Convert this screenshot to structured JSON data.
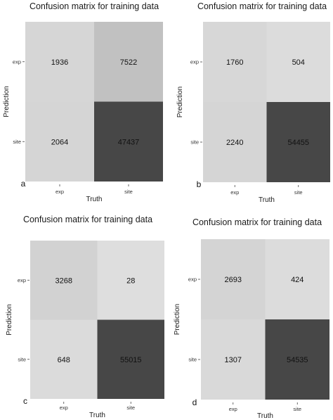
{
  "shade": {
    "low": "#dedede",
    "high": "#474747"
  },
  "chart_data": [
    {
      "type": "heatmap",
      "panel": "a",
      "title": "Confusion matrix for training data",
      "xlabel": "Truth",
      "ylabel": "Prediction",
      "x_categories": [
        "exp",
        "site"
      ],
      "y_categories": [
        "exp",
        "site"
      ],
      "cells": [
        {
          "truth": "exp",
          "prediction": "exp",
          "value": 1936
        },
        {
          "truth": "site",
          "prediction": "exp",
          "value": 7522
        },
        {
          "truth": "exp",
          "prediction": "site",
          "value": 2064
        },
        {
          "truth": "site",
          "prediction": "site",
          "value": 47437
        }
      ]
    },
    {
      "type": "heatmap",
      "panel": "b",
      "title": "Confusion matrix for training data",
      "xlabel": "Truth",
      "ylabel": "Prediction",
      "x_categories": [
        "exp",
        "site"
      ],
      "y_categories": [
        "exp",
        "site"
      ],
      "cells": [
        {
          "truth": "exp",
          "prediction": "exp",
          "value": 1760
        },
        {
          "truth": "site",
          "prediction": "exp",
          "value": 504
        },
        {
          "truth": "exp",
          "prediction": "site",
          "value": 2240
        },
        {
          "truth": "site",
          "prediction": "site",
          "value": 54455
        }
      ]
    },
    {
      "type": "heatmap",
      "panel": "c",
      "title": "Confusion matrix for training data",
      "xlabel": "Truth",
      "ylabel": "Prediction",
      "x_categories": [
        "exp",
        "site"
      ],
      "y_categories": [
        "exp",
        "site"
      ],
      "cells": [
        {
          "truth": "exp",
          "prediction": "exp",
          "value": 3268
        },
        {
          "truth": "site",
          "prediction": "exp",
          "value": 28
        },
        {
          "truth": "exp",
          "prediction": "site",
          "value": 648
        },
        {
          "truth": "site",
          "prediction": "site",
          "value": 55015
        }
      ]
    },
    {
      "type": "heatmap",
      "panel": "d",
      "title": "Confusion matrix for training data",
      "xlabel": "Truth",
      "ylabel": "Prediction",
      "x_categories": [
        "exp",
        "site"
      ],
      "y_categories": [
        "exp",
        "site"
      ],
      "cells": [
        {
          "truth": "exp",
          "prediction": "exp",
          "value": 2693
        },
        {
          "truth": "site",
          "prediction": "exp",
          "value": 424
        },
        {
          "truth": "exp",
          "prediction": "site",
          "value": 1307
        },
        {
          "truth": "site",
          "prediction": "site",
          "value": 54535
        }
      ]
    }
  ]
}
